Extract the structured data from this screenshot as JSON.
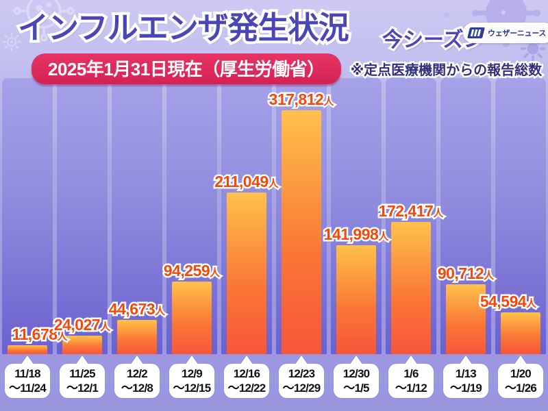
{
  "header": {
    "title": "インフルエンザ発生状況",
    "season_label": "今シーズン",
    "date_badge": "2025年1月31日現在（厚生労働省）",
    "note": "※定点医療機関からの報告総数",
    "logo_text": "ウェザーニュース"
  },
  "colors": {
    "title_indigo": "#4946b6",
    "badge_red": "#d92750",
    "value_orange": "#f14b0c",
    "bar_gradient_top": "#ffc14a",
    "bar_gradient_bottom": "#f8563a",
    "background_top": "#cdc9f3",
    "background_bottom": "#9a95df",
    "column_band_bottom": "#6a61ce",
    "logo_navy": "#24378f"
  },
  "chart_data": {
    "type": "bar",
    "title": "インフルエンザ発生状況 今シーズン",
    "subtitle": "2025年1月31日現在（厚生労働省） ※定点医療機関からの報告総数",
    "unit": "人",
    "xlabel": "",
    "ylabel": "",
    "axes_visible": false,
    "grid": false,
    "legend": "none",
    "ylim": [
      0,
      317812
    ],
    "categories": [
      "11/18〜11/24",
      "11/25〜12/1",
      "12/2〜12/8",
      "12/9〜12/15",
      "12/16〜12/22",
      "12/23〜12/29",
      "12/30〜1/5",
      "1/6〜1/12",
      "1/13〜1/19",
      "1/20〜1/26"
    ],
    "values": [
      11678,
      24027,
      44673,
      94259,
      211049,
      317812,
      141998,
      172417,
      90712,
      54594
    ],
    "value_labels": [
      "11,678",
      "24,027",
      "44,673",
      "94,259",
      "211,049",
      "317,812",
      "141,998",
      "172,417",
      "90,712",
      "54,594"
    ],
    "value_suffix": "人",
    "week_labels": [
      {
        "line1": "11/18",
        "line2": "〜11/24"
      },
      {
        "line1": "11/25",
        "line2": "〜12/1"
      },
      {
        "line1": "12/2",
        "line2": "〜12/8"
      },
      {
        "line1": "12/9",
        "line2": "〜12/15"
      },
      {
        "line1": "12/16",
        "line2": "〜12/22"
      },
      {
        "line1": "12/23",
        "line2": "〜12/29"
      },
      {
        "line1": "12/30",
        "line2": "〜1/5"
      },
      {
        "line1": "1/6",
        "line2": "〜1/12"
      },
      {
        "line1": "1/13",
        "line2": "〜1/19"
      },
      {
        "line1": "1/20",
        "line2": "〜1/26"
      }
    ]
  }
}
